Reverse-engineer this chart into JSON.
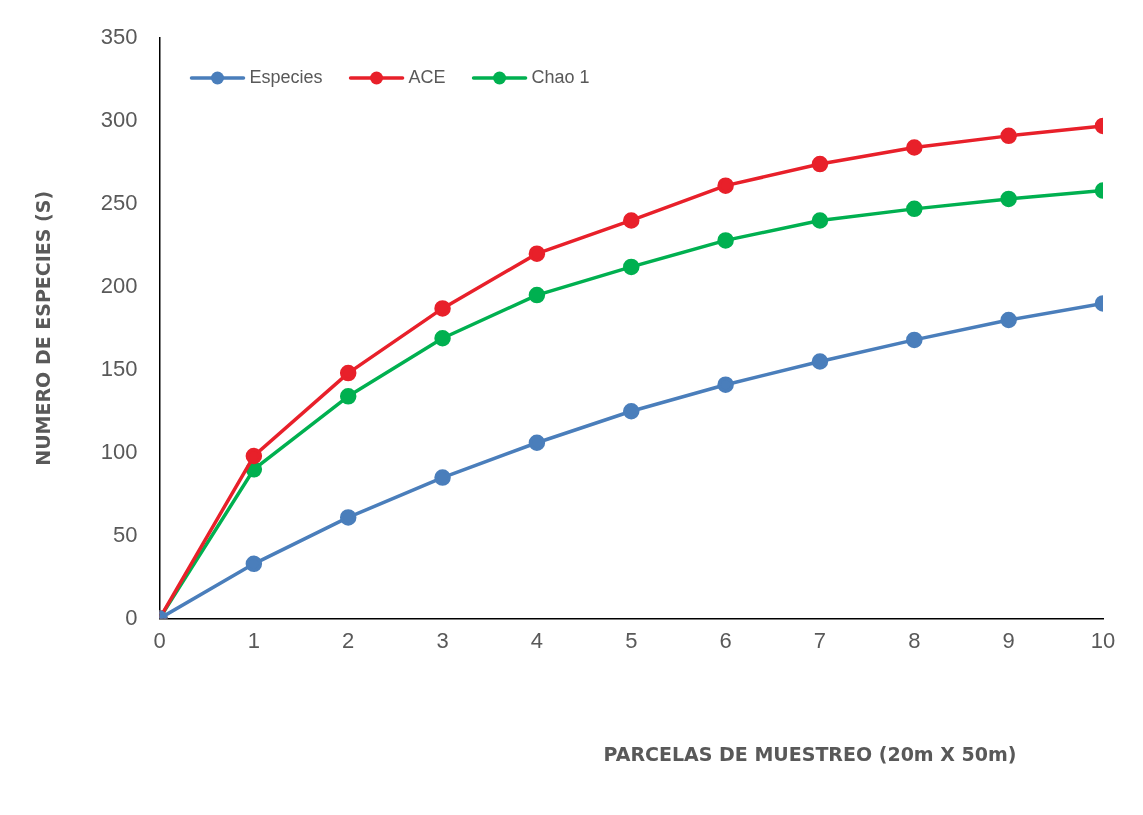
{
  "chart_data": {
    "type": "line",
    "xlabel": "PARCELAS DE MUESTREO (20m X 50m)",
    "ylabel": "NUMERO DE ESPECIES (S)",
    "x": [
      0,
      1,
      2,
      3,
      4,
      5,
      6,
      7,
      8,
      9,
      10
    ],
    "xlim": [
      0,
      10
    ],
    "xticks": [
      0,
      1,
      2,
      3,
      4,
      5,
      6,
      7,
      8,
      9,
      10
    ],
    "ylim": [
      0,
      350
    ],
    "yticks": [
      0,
      50,
      100,
      150,
      200,
      250,
      300,
      350
    ],
    "legend": "top left",
    "marker": "circle",
    "series": [
      {
        "name": "Especies",
        "color": "#4a7ebb",
        "values": [
          0,
          33,
          61,
          85,
          106,
          125,
          141,
          155,
          168,
          180,
          190
        ]
      },
      {
        "name": "ACE",
        "color": "#e8202a",
        "values": [
          0,
          98,
          148,
          187,
          220,
          240,
          261,
          274,
          284,
          291,
          297
        ]
      },
      {
        "name": "Chao 1",
        "color": "#00b050",
        "values": [
          0,
          90,
          134,
          169,
          195,
          212,
          228,
          240,
          247,
          253,
          258
        ]
      }
    ]
  }
}
